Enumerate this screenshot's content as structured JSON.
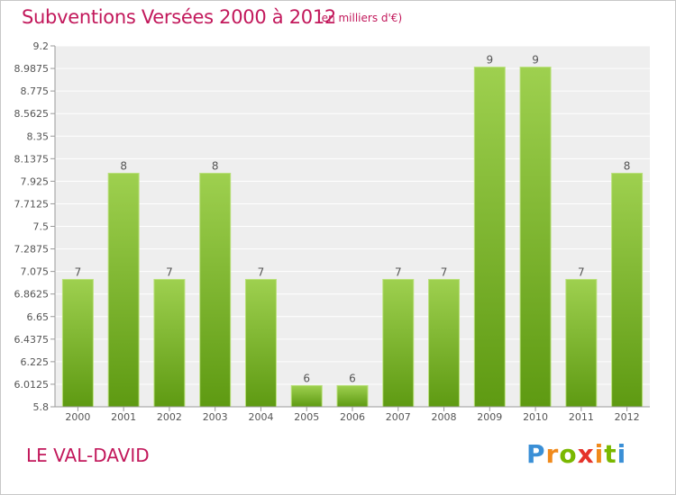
{
  "header": {
    "title": "Subventions Versées 2000 à 2012",
    "subtitle": "(en milliers d'€)"
  },
  "footer": {
    "place": "LE VAL-DAVID",
    "logo": "Proxiti"
  },
  "colors": {
    "accent": "#c2185b",
    "bar_top": "#9ed04f",
    "bar_bottom": "#5e9a12",
    "plot_background": "#eeeeee",
    "grid": "#ffffff"
  },
  "chart_data": {
    "type": "bar",
    "title": "Subventions Versées 2000 à 2012",
    "subtitle": "(en milliers d'€)",
    "categories": [
      "2000",
      "2001",
      "2002",
      "2003",
      "2004",
      "2005",
      "2006",
      "2007",
      "2008",
      "2009",
      "2010",
      "2011",
      "2012"
    ],
    "values": [
      7,
      8,
      7,
      8,
      7,
      6,
      6,
      7,
      7,
      9,
      9,
      7,
      8
    ],
    "value_labels": [
      "7",
      "8",
      "7",
      "8",
      "7",
      "6",
      "6",
      "7",
      "7",
      "9",
      "9",
      "7",
      "8"
    ],
    "y_ticks": [
      "5.8",
      "6.0125",
      "6.225",
      "6.4375",
      "6.65",
      "6.8625",
      "7.075",
      "7.2875",
      "7.5",
      "7.7125",
      "7.925",
      "8.1375",
      "8.35",
      "8.5625",
      "8.775",
      "8.9875",
      "9.2"
    ],
    "ylim": [
      5.8,
      9.2
    ],
    "xlabel": "",
    "ylabel": "",
    "grid": true,
    "legend": "none"
  }
}
